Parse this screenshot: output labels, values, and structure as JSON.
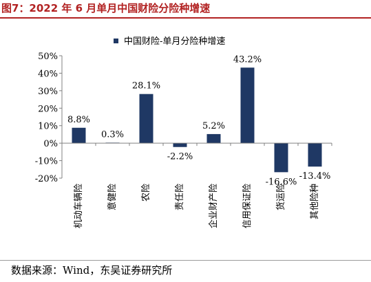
{
  "figure_title": "图7：2022 年 6 月单月中国财险分险种增速",
  "source_note": "数据来源：Wind，东吴证券研究所",
  "colors": {
    "bar": "#1f3864",
    "title": "#b22222",
    "axis": "#808080"
  },
  "chart_data": {
    "type": "bar",
    "categories": [
      "机动车辆险",
      "意健险",
      "农险",
      "责任险",
      "企业财产险",
      "信用保证险",
      "货运险",
      "其他险种"
    ],
    "series": [
      {
        "name": "中国财险-单月分险种增速",
        "values": [
          8.8,
          0.3,
          28.1,
          -2.2,
          5.2,
          43.2,
          -16.6,
          -13.4
        ],
        "labels": [
          "8.8%",
          "0.3%",
          "28.1%",
          "-2.2%",
          "5.2%",
          "43.2%",
          "-16.6%",
          "-13.4%"
        ]
      }
    ],
    "ylim": [
      -20,
      50
    ],
    "yticks": [
      -20,
      -10,
      0,
      10,
      20,
      30,
      40,
      50
    ],
    "ytick_labels": [
      "-20%",
      "-10%",
      "0%",
      "10%",
      "20%",
      "30%",
      "40%",
      "50%"
    ],
    "legend_position": "top",
    "grid": false
  }
}
